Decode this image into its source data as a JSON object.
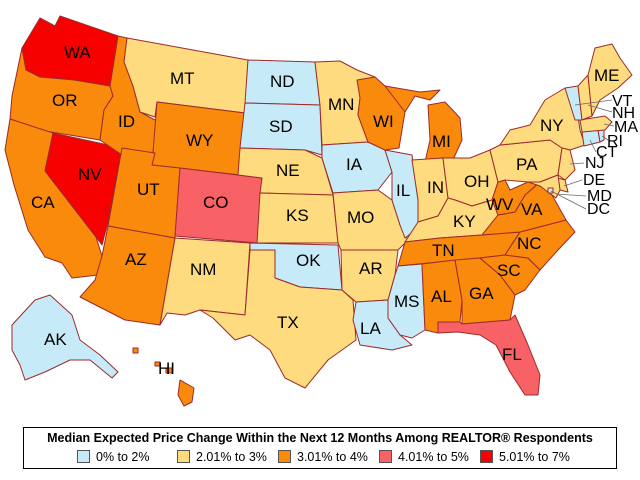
{
  "colors": {
    "bin1": "#c7eaf8",
    "bin2": "#fddb7e",
    "bin3": "#f98a0b",
    "bin4": "#f86266",
    "bin5": "#f70000",
    "border": "#9b2b2b"
  },
  "legend": {
    "title": "Median Expected Price Change Within the Next 12 Months Among REALTOR® Respondents",
    "items": [
      {
        "label": "0% to 2%",
        "bin": "bin1"
      },
      {
        "label": "2.01% to 3%",
        "bin": "bin2"
      },
      {
        "label": "3.01% to 4%",
        "bin": "bin3"
      },
      {
        "label": "4.01% to 5%",
        "bin": "bin4"
      },
      {
        "label": "5.01% to 7%",
        "bin": "bin5"
      }
    ]
  },
  "states": {
    "WA": {
      "label": "WA",
      "bin": "bin5"
    },
    "OR": {
      "label": "OR",
      "bin": "bin3"
    },
    "CA": {
      "label": "CA",
      "bin": "bin3"
    },
    "NV": {
      "label": "NV",
      "bin": "bin5"
    },
    "ID": {
      "label": "ID",
      "bin": "bin3"
    },
    "MT": {
      "label": "MT",
      "bin": "bin2"
    },
    "WY": {
      "label": "WY",
      "bin": "bin3"
    },
    "UT": {
      "label": "UT",
      "bin": "bin3"
    },
    "AZ": {
      "label": "AZ",
      "bin": "bin3"
    },
    "CO": {
      "label": "CO",
      "bin": "bin4"
    },
    "NM": {
      "label": "NM",
      "bin": "bin2"
    },
    "ND": {
      "label": "ND",
      "bin": "bin1"
    },
    "SD": {
      "label": "SD",
      "bin": "bin1"
    },
    "NE": {
      "label": "NE",
      "bin": "bin2"
    },
    "KS": {
      "label": "KS",
      "bin": "bin2"
    },
    "OK": {
      "label": "OK",
      "bin": "bin1"
    },
    "TX": {
      "label": "TX",
      "bin": "bin2"
    },
    "MN": {
      "label": "MN",
      "bin": "bin2"
    },
    "IA": {
      "label": "IA",
      "bin": "bin1"
    },
    "MO": {
      "label": "MO",
      "bin": "bin2"
    },
    "AR": {
      "label": "AR",
      "bin": "bin2"
    },
    "LA": {
      "label": "LA",
      "bin": "bin1"
    },
    "WI": {
      "label": "WI",
      "bin": "bin3"
    },
    "IL": {
      "label": "IL",
      "bin": "bin1"
    },
    "MI": {
      "label": "MI",
      "bin": "bin3"
    },
    "IN": {
      "label": "IN",
      "bin": "bin2"
    },
    "OH": {
      "label": "OH",
      "bin": "bin2"
    },
    "KY": {
      "label": "KY",
      "bin": "bin2"
    },
    "TN": {
      "label": "TN",
      "bin": "bin3"
    },
    "MS": {
      "label": "MS",
      "bin": "bin1"
    },
    "AL": {
      "label": "AL",
      "bin": "bin3"
    },
    "GA": {
      "label": "GA",
      "bin": "bin3"
    },
    "FL": {
      "label": "FL",
      "bin": "bin4"
    },
    "SC": {
      "label": "SC",
      "bin": "bin3"
    },
    "NC": {
      "label": "NC",
      "bin": "bin3"
    },
    "VA": {
      "label": "VA",
      "bin": "bin3"
    },
    "WV": {
      "label": "WV",
      "bin": "bin3"
    },
    "PA": {
      "label": "PA",
      "bin": "bin2"
    },
    "NY": {
      "label": "NY",
      "bin": "bin2"
    },
    "ME": {
      "label": "ME",
      "bin": "bin2"
    },
    "VT": {
      "label": "VT",
      "bin": "bin1"
    },
    "NH": {
      "label": "NH",
      "bin": "bin2"
    },
    "MA": {
      "label": "MA",
      "bin": "bin2"
    },
    "RI": {
      "label": "RI",
      "bin": "bin1"
    },
    "CT": {
      "label": "CT",
      "bin": "bin1"
    },
    "NJ": {
      "label": "NJ",
      "bin": "bin2"
    },
    "DE": {
      "label": "DE",
      "bin": "bin2"
    },
    "MD": {
      "label": "MD",
      "bin": "bin2"
    },
    "DC": {
      "label": "DC",
      "bin": "bin1"
    },
    "AK": {
      "label": "AK",
      "bin": "bin1"
    },
    "HI": {
      "label": "HI",
      "bin": "bin3"
    }
  }
}
